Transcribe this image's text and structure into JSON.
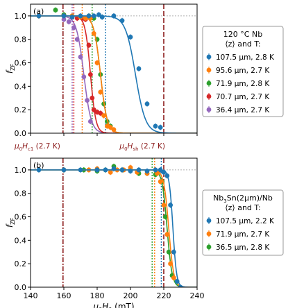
{
  "chart_data": [
    {
      "type": "scatter",
      "panel_label": "(a)",
      "ylabel": "f_ZF",
      "xlim": [
        140,
        240
      ],
      "ylim": [
        0.0,
        1.1
      ],
      "yticks": [
        0.0,
        0.2,
        0.4,
        0.6,
        0.8,
        1.0
      ],
      "ytick_labels": [
        "0.0",
        "0.2",
        "0.4",
        "0.6",
        "0.8",
        "1.0"
      ],
      "legend": {
        "position": "outside-right",
        "title_lines": [
          "120 °C Nb",
          "⟨z⟩ and T:"
        ],
        "entries": [
          "107.5 μm, 2.8 K",
          "95.6 μm, 2.7 K",
          "71.9 μm, 2.8 K",
          "70.7 μm, 2.7 K",
          "36.4 μm, 2.7 K"
        ]
      },
      "reference_lines": [
        {
          "x": 159.5,
          "style": "dashdot",
          "color": "#8b1a1a",
          "label_main": "μ0Hc1",
          "label_suffix": " (2.7 K)"
        },
        {
          "x": 220,
          "style": "dashed",
          "color": "#8b1a1a",
          "label_main": "μ0Hsh",
          "label_suffix": " (2.7 K)"
        }
      ],
      "series": [
        {
          "name": "107.5 μm, 2.8 K",
          "color": "#1f77b4",
          "onset": 185,
          "x": [
            145,
            160,
            165,
            170,
            175,
            178,
            181,
            183,
            190,
            195,
            200,
            205,
            210,
            215,
            218
          ],
          "y": [
            1.0,
            1.0,
            0.99,
            1.0,
            1.0,
            1.0,
            1.01,
            0.99,
            1.0,
            0.96,
            0.82,
            0.55,
            0.25,
            0.06,
            0.05
          ],
          "fit_center": 203,
          "fit_width": 3.0
        },
        {
          "name": "95.6 μm, 2.7 K",
          "color": "#ff7f0e",
          "onset": 171,
          "x": [
            145,
            160,
            165,
            170,
            173,
            176,
            178,
            180,
            182,
            184,
            186,
            188,
            190
          ],
          "y": [
            1.0,
            1.0,
            1.0,
            0.99,
            0.98,
            0.98,
            0.85,
            0.6,
            0.35,
            0.15,
            0.06,
            0.05,
            0.03
          ],
          "fit_center": 182,
          "fit_width": 2.0
        },
        {
          "name": "71.9 μm, 2.8 K",
          "color": "#2ca02c",
          "onset": 177,
          "x": [
            145,
            155,
            160,
            165,
            170,
            175,
            178,
            180,
            182,
            184,
            186,
            188
          ],
          "y": [
            1.0,
            1.05,
            1.01,
            1.0,
            0.99,
            1.0,
            0.98,
            0.8,
            0.5,
            0.25,
            0.1,
            0.06
          ],
          "fit_center": 182,
          "fit_width": 2.0
        },
        {
          "name": "70.7 μm, 2.7 K",
          "color": "#d62728",
          "onset": 166,
          "x": [
            145,
            160,
            165,
            168,
            171,
            173,
            175,
            176,
            177,
            178,
            180,
            182
          ],
          "y": [
            1.0,
            1.01,
            0.99,
            0.98,
            0.98,
            0.97,
            0.75,
            0.5,
            0.3,
            0.2,
            0.18,
            0.17
          ],
          "fit_center": 176,
          "fit_width": 1.6
        },
        {
          "name": "36.4 μm, 2.7 K",
          "color": "#9467bd",
          "onset": 165,
          "x": [
            145,
            160,
            163,
            166,
            168,
            170,
            172,
            174,
            176
          ],
          "y": [
            1.0,
            0.97,
            0.95,
            0.9,
            0.8,
            0.65,
            0.48,
            0.28,
            0.1
          ],
          "fit_center": 172,
          "fit_width": 2.2
        }
      ]
    },
    {
      "type": "scatter",
      "panel_label": "(b)",
      "ylabel": "f_ZF",
      "xlabel_main": "μ0H0",
      "xlabel_suffix": " (mT)",
      "xlim": [
        140,
        240
      ],
      "ylim": [
        0.0,
        1.1
      ],
      "xticks": [
        140,
        160,
        180,
        200,
        220,
        240
      ],
      "xtick_labels": [
        "140",
        "160",
        "180",
        "200",
        "220",
        "240"
      ],
      "yticks": [
        0.0,
        0.2,
        0.4,
        0.6,
        0.8,
        1.0
      ],
      "ytick_labels": [
        "0.0",
        "0.2",
        "0.4",
        "0.6",
        "0.8",
        "1.0"
      ],
      "legend": {
        "position": "outside-right",
        "title_lines": [
          "Nb3Sn(2μm)/Nb",
          "⟨z⟩ and T:"
        ],
        "entries": [
          "107.5 μm, 2.2 K",
          "71.9 μm, 2.7 K",
          "36.5 μm, 2.8 K"
        ]
      },
      "reference_lines": [
        {
          "x": 159.5,
          "style": "dashdot",
          "color": "#8b1a1a"
        },
        {
          "x": 220,
          "style": "dashed",
          "color": "#8b1a1a"
        }
      ],
      "series": [
        {
          "name": "107.5 μm, 2.2 K",
          "color": "#1f77b4",
          "onset": 218.5,
          "x": [
            145,
            160,
            170,
            180,
            185,
            190,
            195,
            200,
            205,
            210,
            215,
            218,
            220,
            222,
            224,
            226,
            228,
            230
          ],
          "y": [
            1.0,
            1.0,
            1.0,
            1.0,
            1.0,
            1.01,
            1.0,
            0.99,
            1.0,
            0.99,
            1.0,
            1.0,
            0.98,
            0.95,
            0.7,
            0.3,
            0.05,
            0.0
          ],
          "fit_center": 225.5,
          "fit_width": 1.1
        },
        {
          "name": "71.9 μm, 2.7 K",
          "color": "#ff7f0e",
          "onset": 214.5,
          "x": [
            160,
            175,
            180,
            188,
            192,
            196,
            200,
            204,
            210,
            216,
            218,
            220,
            222,
            224,
            226
          ],
          "y": [
            1.0,
            1.0,
            1.01,
            0.98,
            1.0,
            1.0,
            1.02,
            0.98,
            0.97,
            0.97,
            0.9,
            0.7,
            0.45,
            0.2,
            0.08
          ],
          "fit_center": 223,
          "fit_width": 1.5
        },
        {
          "name": "36.5 μm, 2.8 K",
          "color": "#2ca02c",
          "onset": 213,
          "x": [
            160,
            172,
            180,
            185,
            190,
            195,
            200,
            205,
            210,
            215,
            219,
            221,
            223,
            225
          ],
          "y": [
            1.0,
            1.0,
            0.99,
            1.0,
            1.03,
            1.0,
            1.0,
            0.97,
            0.97,
            0.96,
            0.9,
            0.6,
            0.3,
            0.1
          ],
          "fit_center": 222,
          "fit_width": 1.5
        }
      ]
    }
  ]
}
